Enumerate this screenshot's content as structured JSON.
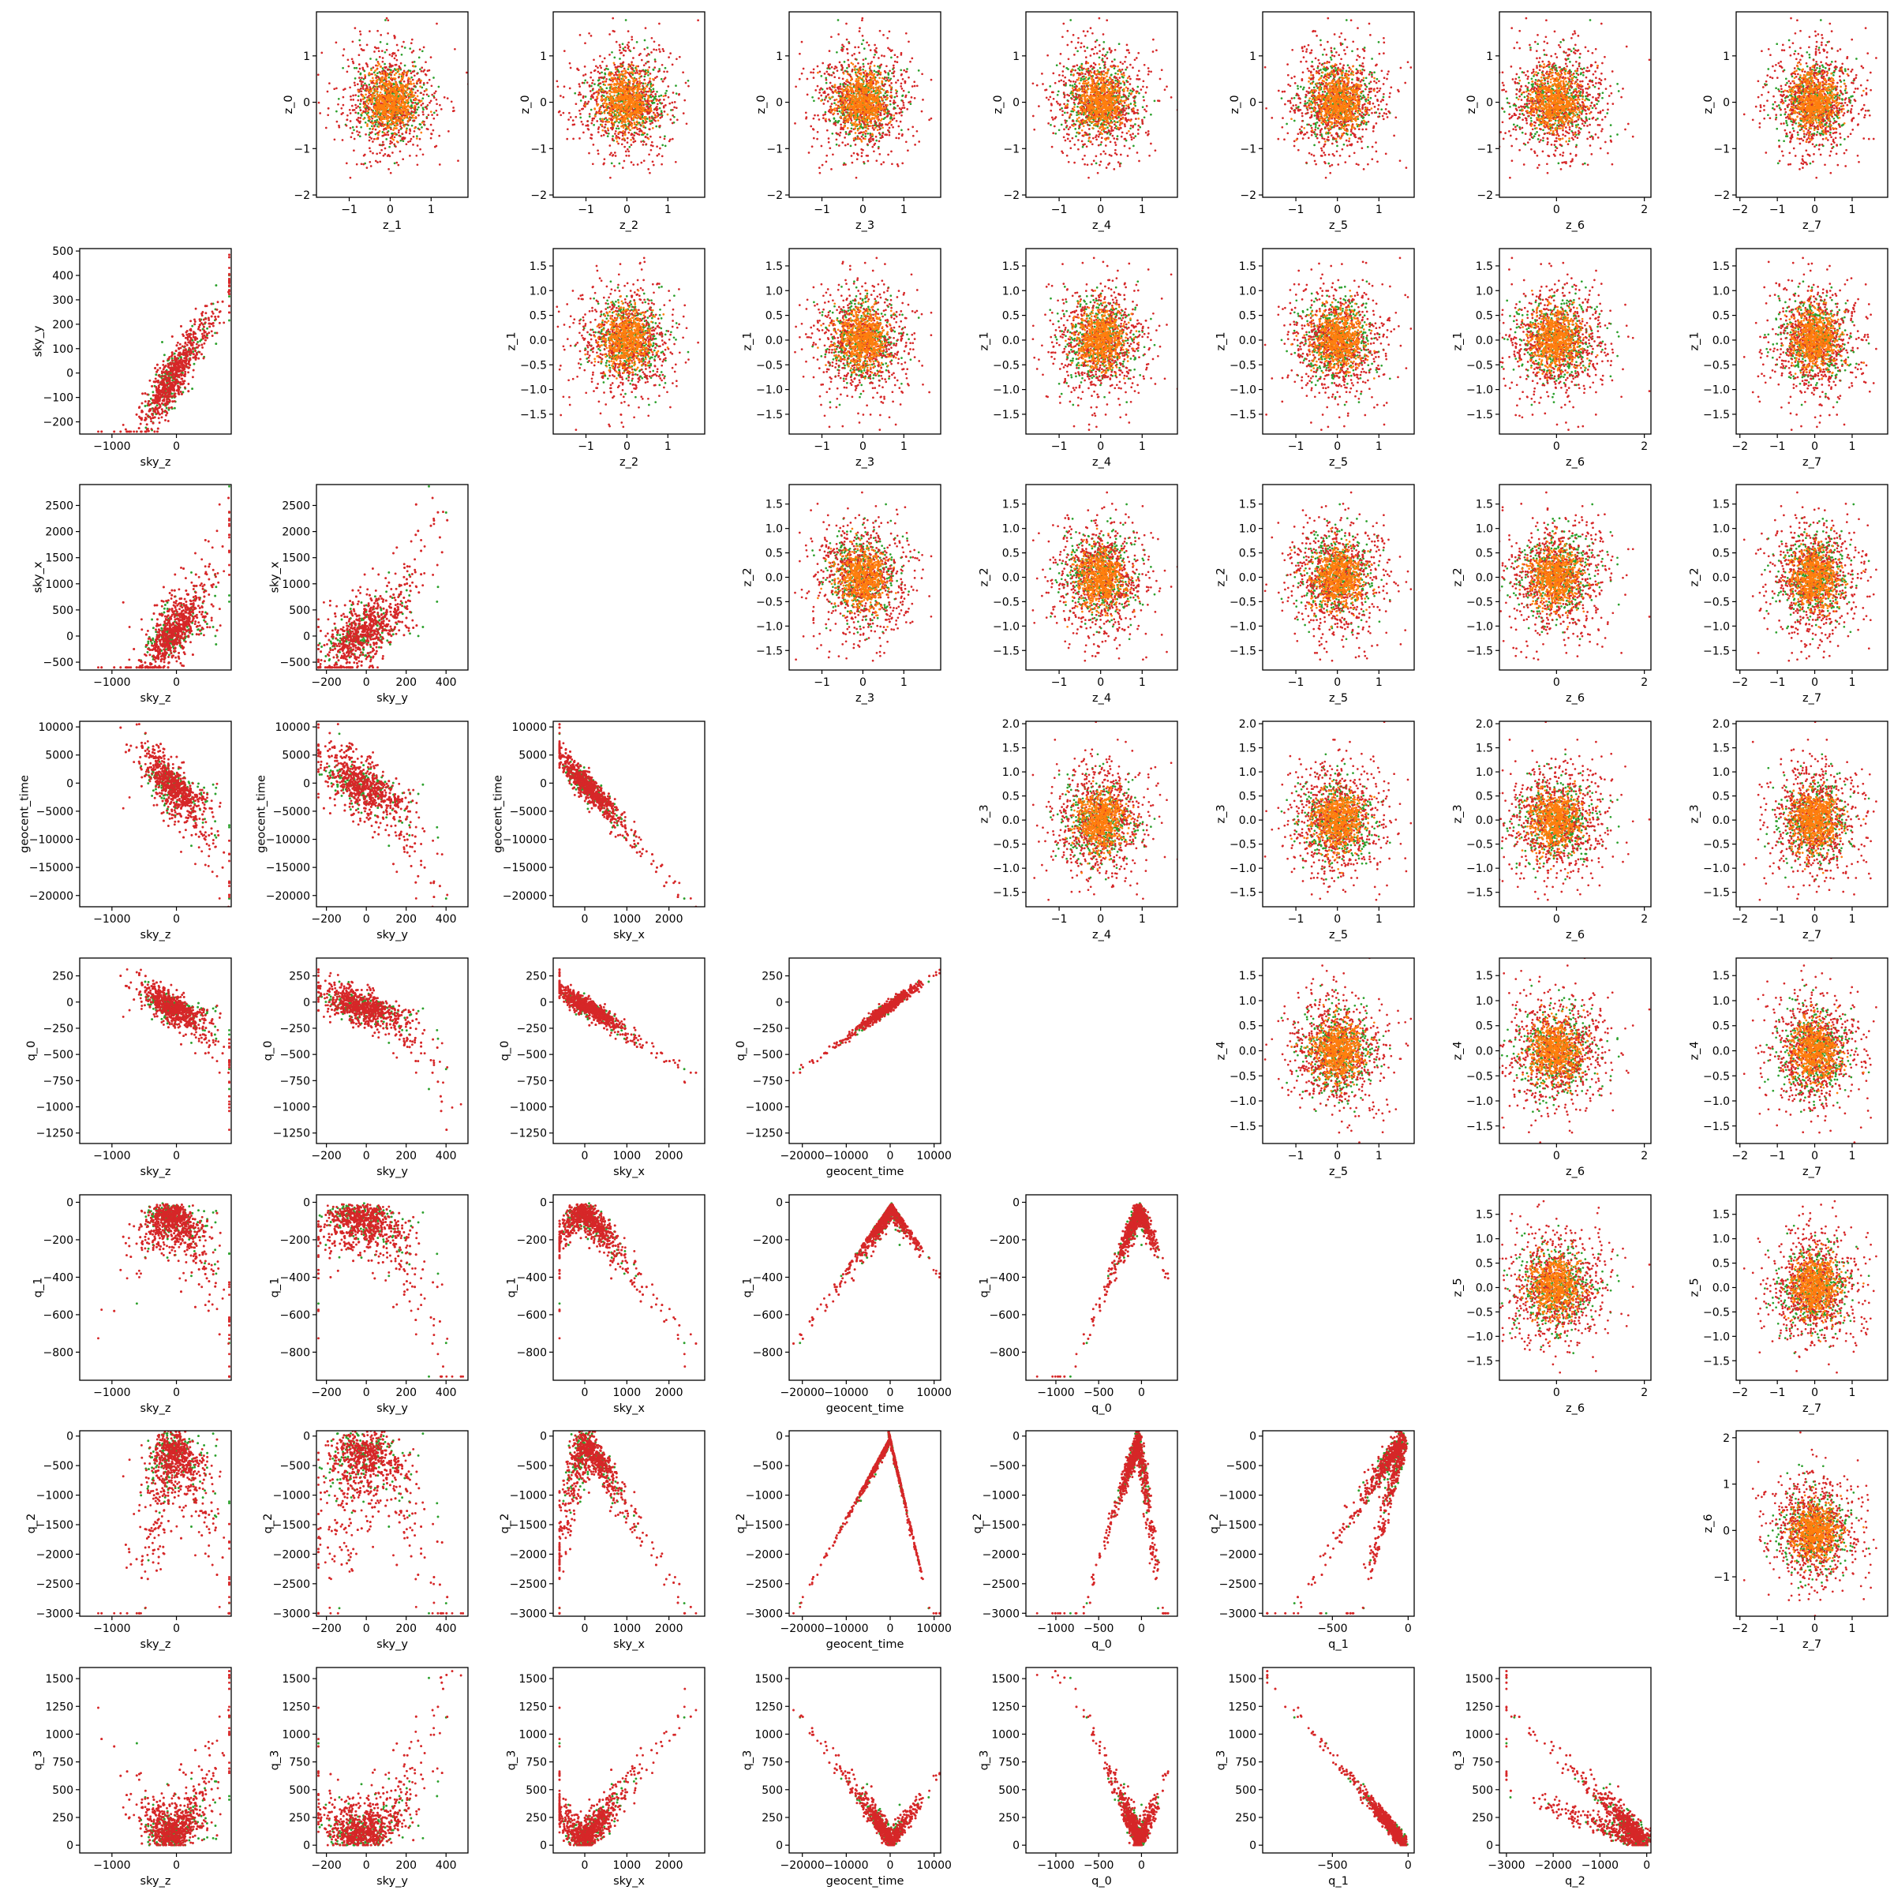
{
  "figure": {
    "colors": {
      "red": "#d62728",
      "green": "#2ca02c",
      "orange": "#ff7f0e"
    }
  },
  "chart_data": {
    "type": "scatter",
    "layout": "pair-plot matrix, 8 rows x 8 columns; lower triangle = physical parameters vs each other, upper triangle = latent z variables vs each other, diagonal empty",
    "series": [
      {
        "name": "",
        "color": "#d62728"
      },
      {
        "name": "",
        "color": "#2ca02c"
      },
      {
        "name": "",
        "color": "#ff7f0e"
      }
    ],
    "variables": {
      "sky_z": {
        "label": "sky_z",
        "lim": [
          -1500,
          850
        ],
        "ticks": [
          -1000,
          0
        ]
      },
      "sky_y": {
        "label": "sky_y",
        "lim": [
          -250,
          510
        ],
        "ticks": [
          -200,
          0,
          200,
          400
        ]
      },
      "sky_x": {
        "label": "sky_x",
        "lim": [
          -750,
          2850
        ],
        "ticks": [
          0,
          1000,
          2000
        ]
      },
      "geocent_time": {
        "label": "geocent_time",
        "lim": [
          -23000,
          11500
        ],
        "ticks": [
          -20000,
          -10000,
          0,
          10000
        ]
      },
      "q_0": {
        "label": "q_0",
        "lim": [
          -1350,
          420
        ],
        "ticks": [
          -1000,
          -500,
          0
        ]
      },
      "q_1": {
        "label": "q_1",
        "lim": [
          -960,
          40
        ],
        "ticks": [
          -500,
          0
        ]
      },
      "q_2": {
        "label": "q_2",
        "lim": [
          -3150,
          90
        ],
        "ticks": [
          -3000,
          -2000,
          -1000,
          0
        ]
      },
      "z_1": {
        "label": "z_1",
        "lim": [
          -1.8,
          1.9
        ],
        "ticks": [
          -1,
          0,
          1
        ]
      },
      "z_2": {
        "label": "z_2",
        "lim": [
          -1.8,
          1.9
        ],
        "ticks": [
          -1,
          0,
          1
        ]
      },
      "z_3": {
        "label": "z_3",
        "lim": [
          -1.8,
          1.9
        ],
        "ticks": [
          -1,
          0,
          1,
          2
        ]
      },
      "z_4": {
        "label": "z_4",
        "lim": [
          -1.8,
          1.85
        ],
        "ticks": [
          -1,
          0,
          1
        ]
      },
      "z_5": {
        "label": "z_5",
        "lim": [
          -1.8,
          1.85
        ],
        "ticks": [
          -1,
          0,
          1
        ]
      },
      "z_6": {
        "label": "z_6",
        "lim": [
          -1.3,
          2.15
        ],
        "ticks": [
          0,
          2
        ]
      },
      "z_7": {
        "label": "z_7",
        "lim": [
          -2.1,
          1.95
        ],
        "ticks": [
          -2,
          -1,
          0,
          1
        ]
      }
    },
    "row_variables": {
      "sky_y": {
        "label": "sky_y",
        "lim": [
          -250,
          510
        ],
        "ticks": [
          -200,
          -100,
          0,
          100,
          200,
          300,
          400,
          500
        ]
      },
      "sky_x": {
        "label": "sky_x",
        "lim": [
          -650,
          2900
        ],
        "ticks": [
          -500,
          0,
          500,
          1000,
          1500,
          2000,
          2500
        ]
      },
      "geocent_time": {
        "label": "geocent_time",
        "lim": [
          -22000,
          11000
        ],
        "ticks": [
          -20000,
          -15000,
          -10000,
          -5000,
          0,
          5000,
          10000
        ]
      },
      "q_0": {
        "label": "q_0",
        "lim": [
          -1350,
          420
        ],
        "ticks": [
          -1250,
          -1000,
          -750,
          -500,
          -250,
          0,
          250
        ]
      },
      "q_1": {
        "label": "q_1",
        "lim": [
          -950,
          40
        ],
        "ticks": [
          -800,
          -600,
          -400,
          -200,
          0
        ]
      },
      "q_2": {
        "label": "q_2",
        "lim": [
          -3050,
          90
        ],
        "ticks": [
          -3000,
          -2500,
          -2000,
          -1500,
          -1000,
          -500,
          0
        ]
      },
      "q_3": {
        "label": "q_3",
        "lim": [
          -70,
          1600
        ],
        "ticks": [
          0,
          250,
          500,
          750,
          1000,
          1250,
          1500
        ]
      },
      "z_0": {
        "label": "z_0",
        "lim": [
          -2.05,
          1.95
        ],
        "ticks": [
          -2,
          -1,
          0,
          1
        ]
      },
      "z_1": {
        "label": "z_1",
        "lim": [
          -1.9,
          1.85
        ],
        "ticks": [
          -1.5,
          -1.0,
          -0.5,
          0.0,
          0.5,
          1.0,
          1.5
        ]
      },
      "z_2": {
        "label": "z_2",
        "lim": [
          -1.9,
          1.9
        ],
        "ticks": [
          -1.5,
          -1.0,
          -0.5,
          0.0,
          0.5,
          1.0,
          1.5
        ]
      },
      "z_3": {
        "label": "z_3",
        "lim": [
          -1.8,
          2.05
        ],
        "ticks": [
          -1.5,
          -1.0,
          -0.5,
          0.0,
          0.5,
          1.0,
          1.5,
          2.0
        ]
      },
      "z_4": {
        "label": "z_4",
        "lim": [
          -1.85,
          1.85
        ],
        "ticks": [
          -1.5,
          -1.0,
          -0.5,
          0.0,
          0.5,
          1.0,
          1.5
        ]
      },
      "z_5": {
        "label": "z_5",
        "lim": [
          -1.9,
          1.9
        ],
        "ticks": [
          -1.5,
          -1.0,
          -0.5,
          0.0,
          0.5,
          1.0,
          1.5
        ]
      },
      "z_6": {
        "label": "z_6",
        "lim": [
          -1.85,
          2.15
        ],
        "ticks": [
          -1,
          0,
          1,
          2
        ]
      }
    },
    "panels": [
      {
        "row": 0,
        "col": 1,
        "x": "z_1",
        "y": "z_0",
        "shape": "gaussian"
      },
      {
        "row": 0,
        "col": 2,
        "x": "z_2",
        "y": "z_0",
        "shape": "gaussian"
      },
      {
        "row": 0,
        "col": 3,
        "x": "z_3",
        "y": "z_0",
        "shape": "gaussian"
      },
      {
        "row": 0,
        "col": 4,
        "x": "z_4",
        "y": "z_0",
        "shape": "gaussian"
      },
      {
        "row": 0,
        "col": 5,
        "x": "z_5",
        "y": "z_0",
        "shape": "gaussian"
      },
      {
        "row": 0,
        "col": 6,
        "x": "z_6",
        "y": "z_0",
        "shape": "gaussian"
      },
      {
        "row": 0,
        "col": 7,
        "x": "z_7",
        "y": "z_0",
        "shape": "gaussian"
      },
      {
        "row": 1,
        "col": 0,
        "x": "sky_z",
        "y": "sky_y",
        "shape": "skyz_skyy"
      },
      {
        "row": 1,
        "col": 2,
        "x": "z_2",
        "y": "z_1",
        "shape": "gaussian"
      },
      {
        "row": 1,
        "col": 3,
        "x": "z_3",
        "y": "z_1",
        "shape": "gaussian"
      },
      {
        "row": 1,
        "col": 4,
        "x": "z_4",
        "y": "z_1",
        "shape": "gaussian"
      },
      {
        "row": 1,
        "col": 5,
        "x": "z_5",
        "y": "z_1",
        "shape": "gaussian"
      },
      {
        "row": 1,
        "col": 6,
        "x": "z_6",
        "y": "z_1",
        "shape": "gaussian"
      },
      {
        "row": 1,
        "col": 7,
        "x": "z_7",
        "y": "z_1",
        "shape": "gaussian"
      },
      {
        "row": 2,
        "col": 0,
        "x": "sky_z",
        "y": "sky_x",
        "shape": "skyz_skyx"
      },
      {
        "row": 2,
        "col": 1,
        "x": "sky_y",
        "y": "sky_x",
        "shape": "skyy_skyx"
      },
      {
        "row": 2,
        "col": 3,
        "x": "z_3",
        "y": "z_2",
        "shape": "gaussian"
      },
      {
        "row": 2,
        "col": 4,
        "x": "z_4",
        "y": "z_2",
        "shape": "gaussian"
      },
      {
        "row": 2,
        "col": 5,
        "x": "z_5",
        "y": "z_2",
        "shape": "gaussian"
      },
      {
        "row": 2,
        "col": 6,
        "x": "z_6",
        "y": "z_2",
        "shape": "gaussian"
      },
      {
        "row": 2,
        "col": 7,
        "x": "z_7",
        "y": "z_2",
        "shape": "gaussian"
      },
      {
        "row": 3,
        "col": 0,
        "x": "sky_z",
        "y": "geocent_time",
        "shape": "skyz_time"
      },
      {
        "row": 3,
        "col": 1,
        "x": "sky_y",
        "y": "geocent_time",
        "shape": "skyy_time"
      },
      {
        "row": 3,
        "col": 2,
        "x": "sky_x",
        "y": "geocent_time",
        "shape": "skyx_time"
      },
      {
        "row": 3,
        "col": 4,
        "x": "z_4",
        "y": "z_3",
        "shape": "gaussian"
      },
      {
        "row": 3,
        "col": 5,
        "x": "z_5",
        "y": "z_3",
        "shape": "gaussian"
      },
      {
        "row": 3,
        "col": 6,
        "x": "z_6",
        "y": "z_3",
        "shape": "gaussian"
      },
      {
        "row": 3,
        "col": 7,
        "x": "z_7",
        "y": "z_3",
        "shape": "gaussian"
      },
      {
        "row": 4,
        "col": 0,
        "x": "sky_z",
        "y": "q_0",
        "shape": "skyz_q0"
      },
      {
        "row": 4,
        "col": 1,
        "x": "sky_y",
        "y": "q_0",
        "shape": "skyy_q0"
      },
      {
        "row": 4,
        "col": 2,
        "x": "sky_x",
        "y": "q_0",
        "shape": "skyx_q0"
      },
      {
        "row": 4,
        "col": 3,
        "x": "geocent_time",
        "y": "q_0",
        "shape": "time_q0"
      },
      {
        "row": 4,
        "col": 5,
        "x": "z_5",
        "y": "z_4",
        "shape": "gaussian"
      },
      {
        "row": 4,
        "col": 6,
        "x": "z_6",
        "y": "z_4",
        "shape": "gaussian"
      },
      {
        "row": 4,
        "col": 7,
        "x": "z_7",
        "y": "z_4",
        "shape": "gaussian"
      },
      {
        "row": 5,
        "col": 0,
        "x": "sky_z",
        "y": "q_1",
        "shape": "skyz_q1"
      },
      {
        "row": 5,
        "col": 1,
        "x": "sky_y",
        "y": "q_1",
        "shape": "skyy_q1"
      },
      {
        "row": 5,
        "col": 2,
        "x": "sky_x",
        "y": "q_1",
        "shape": "skyx_q1"
      },
      {
        "row": 5,
        "col": 3,
        "x": "geocent_time",
        "y": "q_1",
        "shape": "time_q1"
      },
      {
        "row": 5,
        "col": 4,
        "x": "q_0",
        "y": "q_1",
        "shape": "q0_q1"
      },
      {
        "row": 5,
        "col": 6,
        "x": "z_6",
        "y": "z_5",
        "shape": "gaussian"
      },
      {
        "row": 5,
        "col": 7,
        "x": "z_7",
        "y": "z_5",
        "shape": "gaussian"
      },
      {
        "row": 6,
        "col": 0,
        "x": "sky_z",
        "y": "q_2",
        "shape": "skyz_q2"
      },
      {
        "row": 6,
        "col": 1,
        "x": "sky_y",
        "y": "q_2",
        "shape": "skyy_q2"
      },
      {
        "row": 6,
        "col": 2,
        "x": "sky_x",
        "y": "q_2",
        "shape": "skyx_q2"
      },
      {
        "row": 6,
        "col": 3,
        "x": "geocent_time",
        "y": "q_2",
        "shape": "time_q2"
      },
      {
        "row": 6,
        "col": 4,
        "x": "q_0",
        "y": "q_2",
        "shape": "q0_q2"
      },
      {
        "row": 6,
        "col": 5,
        "x": "q_1",
        "y": "q_2",
        "shape": "q1_q2"
      },
      {
        "row": 6,
        "col": 7,
        "x": "z_7",
        "y": "z_6",
        "shape": "gaussian"
      },
      {
        "row": 7,
        "col": 0,
        "x": "sky_z",
        "y": "q_3",
        "shape": "skyz_q3"
      },
      {
        "row": 7,
        "col": 1,
        "x": "sky_y",
        "y": "q_3",
        "shape": "skyy_q3"
      },
      {
        "row": 7,
        "col": 2,
        "x": "sky_x",
        "y": "q_3",
        "shape": "skyx_q3"
      },
      {
        "row": 7,
        "col": 3,
        "x": "geocent_time",
        "y": "q_3",
        "shape": "time_q3"
      },
      {
        "row": 7,
        "col": 4,
        "x": "q_0",
        "y": "q_3",
        "shape": "q0_q3"
      },
      {
        "row": 7,
        "col": 5,
        "x": "q_1",
        "y": "q_3",
        "shape": "q1_q3"
      },
      {
        "row": 7,
        "col": 6,
        "x": "q_2",
        "y": "q_3",
        "shape": "q2_q3"
      }
    ]
  }
}
